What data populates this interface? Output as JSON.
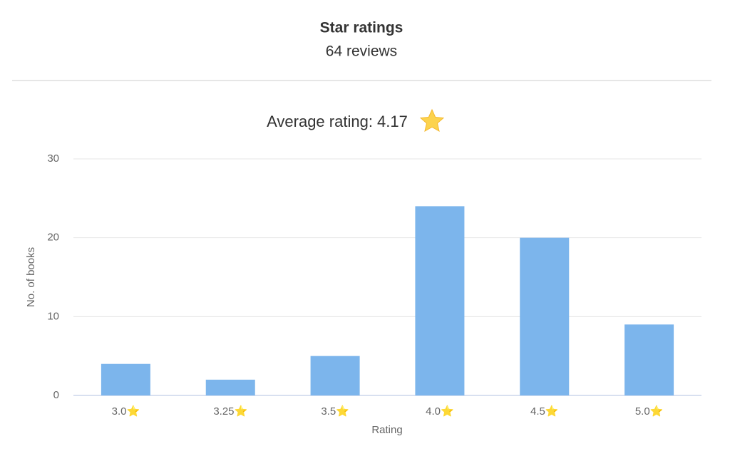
{
  "header": {
    "title": "Star ratings",
    "subtitle": "64 reviews"
  },
  "chart_data": {
    "type": "bar",
    "title": "Average rating: 4.17",
    "x_label": "Rating",
    "y_label": "No. of books",
    "categories": [
      "3.0⭐",
      "3.25⭐",
      "3.5⭐",
      "4.0⭐",
      "4.5⭐",
      "5.0⭐"
    ],
    "values": [
      4,
      2,
      5,
      24,
      20,
      9
    ],
    "color": "#7cb5ec",
    "ylim": [
      0,
      30
    ],
    "yticks": [
      0,
      10,
      20,
      30
    ],
    "grid": true
  }
}
